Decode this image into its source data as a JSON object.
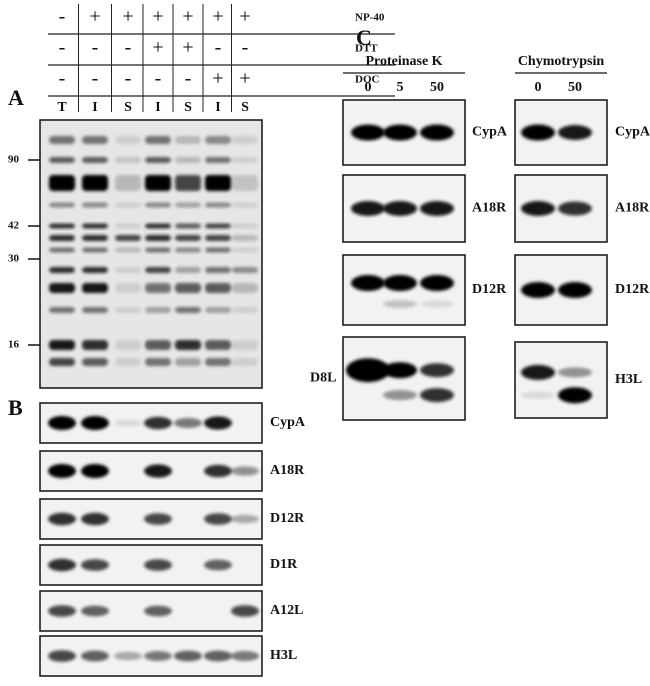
{
  "conditions": {
    "rows": [
      {
        "label": "NP-40",
        "signs": [
          "-",
          "+",
          "+",
          "+",
          "+",
          "+",
          "+"
        ]
      },
      {
        "label": "DTT",
        "signs": [
          "-",
          "-",
          "-",
          "+",
          "+",
          "-",
          "-"
        ]
      },
      {
        "label": "DOC",
        "signs": [
          "-",
          "-",
          "-",
          "-",
          "-",
          "+",
          "+"
        ]
      }
    ]
  },
  "panel_a": {
    "label": "A",
    "lanes": [
      "T",
      "I",
      "S",
      "I",
      "S",
      "I",
      "S"
    ],
    "markers": [
      "90",
      "42",
      "30",
      "16"
    ]
  },
  "panel_b": {
    "label": "B",
    "blots": [
      "CypA",
      "A18R",
      "D12R",
      "D1R",
      "A12L",
      "H3L"
    ]
  },
  "panel_c": {
    "label": "C",
    "groups": [
      {
        "title": "Proteinase K",
        "lanes": [
          "0",
          "5",
          "50"
        ],
        "blots": [
          "CypA",
          "A18R",
          "D12R",
          "D8L"
        ]
      },
      {
        "title": "Chymotrypsin",
        "lanes": [
          "0",
          "50"
        ],
        "blots": [
          "CypA",
          "A18R",
          "D12R",
          "H3L"
        ]
      }
    ]
  }
}
